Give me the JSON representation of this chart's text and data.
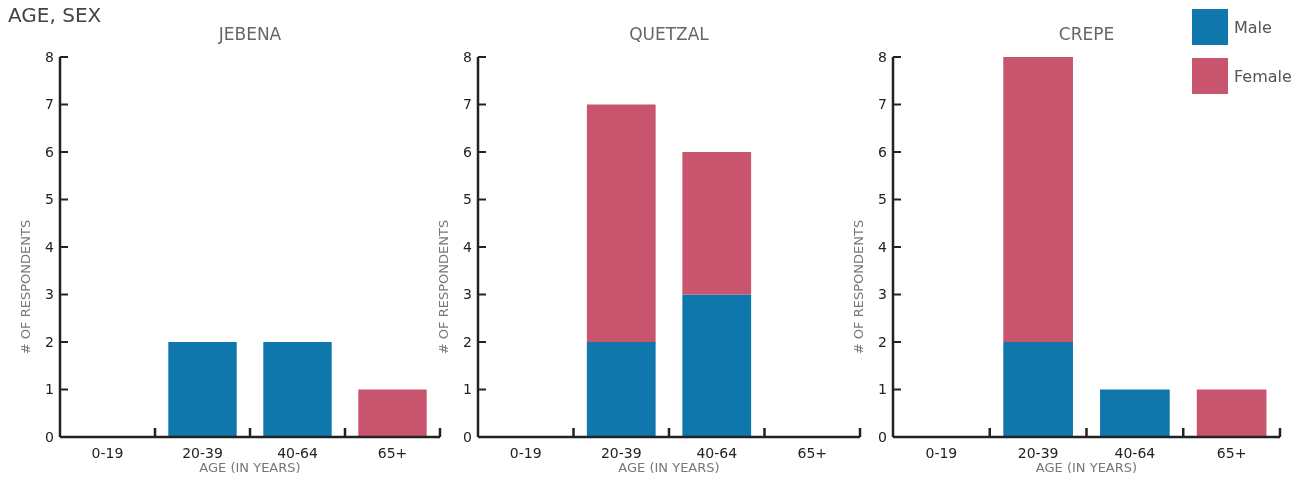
{
  "chart_data": [
    {
      "type": "bar",
      "title": "JEBENA",
      "annotations": [
        "AGE, SEX"
      ],
      "xlabel": "AGE (IN YEARS)",
      "ylabel": "# OF RESPONDENTS",
      "categories": [
        "0-19",
        "20-39",
        "40-64",
        "65+"
      ],
      "stacked": true,
      "ylim": [
        0,
        8
      ],
      "yticks": [
        0,
        1,
        2,
        3,
        4,
        5,
        6,
        7,
        8
      ],
      "grid": false,
      "series": [
        {
          "color": "#0f77ab",
          "values": [
            0,
            2,
            2,
            0
          ]
        },
        {
          "color": "#c8546e",
          "values": [
            0,
            0,
            0,
            1
          ]
        }
      ]
    },
    {
      "type": "bar",
      "title": "QUETZAL",
      "xlabel": "AGE (IN YEARS)",
      "ylabel": "# OF RESPONDENTS",
      "categories": [
        "0-19",
        "20-39",
        "40-64",
        "65+"
      ],
      "stacked": true,
      "ylim": [
        0,
        8
      ],
      "yticks": [
        0,
        1,
        2,
        3,
        4,
        5,
        6,
        7,
        8
      ],
      "grid": false,
      "series": [
        {
          "color": "#0f77ab",
          "values": [
            0,
            2,
            3,
            0
          ]
        },
        {
          "color": "#c8546e",
          "values": [
            0,
            5,
            3,
            0
          ]
        }
      ]
    },
    {
      "type": "bar",
      "title": "CREPE",
      "xlabel": "AGE (IN YEARS)",
      "ylabel": "# OF RESPONDENTS",
      "categories": [
        "0-19",
        "20-39",
        "40-64",
        "65+"
      ],
      "stacked": true,
      "ylim": [
        0,
        8
      ],
      "yticks": [
        0,
        1,
        2,
        3,
        4,
        5,
        6,
        7,
        8
      ],
      "grid": false,
      "legend": "top right",
      "series": [
        {
          "name": "Male",
          "color": "#0f77ab",
          "values": [
            0,
            2,
            1,
            0
          ]
        },
        {
          "name": "Female",
          "color": "#c8546e",
          "values": [
            0,
            6,
            0,
            1
          ]
        }
      ]
    }
  ]
}
